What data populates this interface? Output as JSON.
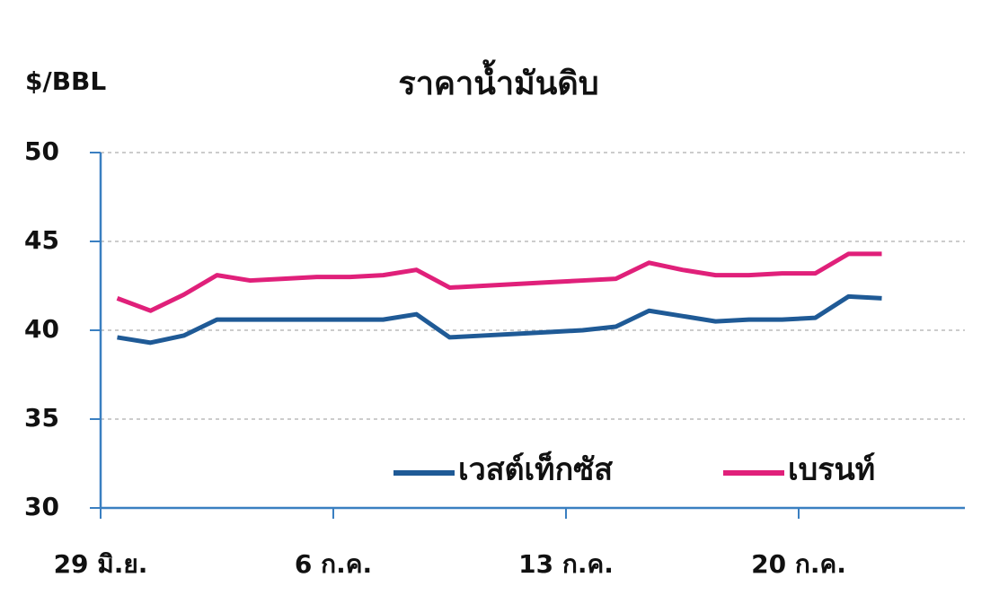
{
  "chart_data": {
    "type": "line",
    "title": "ราคาน้ำมันดิบ",
    "y_label": "$/BBL",
    "categories": [
      "29 มิ.ย.",
      null,
      null,
      null,
      null,
      null,
      null,
      "6 ก.ค.",
      null,
      null,
      null,
      null,
      null,
      null,
      "13 ก.ค.",
      null,
      null,
      null,
      null,
      null,
      null,
      "20 ก.ค.",
      null,
      null,
      null,
      null
    ],
    "series": [
      {
        "name": "เวสต์เท็กซัส",
        "color": "#1f5a96",
        "values": [
          39.6,
          39.3,
          39.7,
          40.6,
          40.6,
          40.6,
          40.6,
          40.6,
          40.6,
          40.9,
          39.6,
          39.7,
          39.8,
          39.9,
          40.0,
          40.2,
          41.1,
          40.8,
          40.5,
          40.6,
          40.6,
          40.7,
          41.9,
          41.8,
          null,
          null
        ]
      },
      {
        "name": "เบรนท์",
        "color": "#e0207a",
        "values": [
          41.8,
          41.1,
          42.0,
          43.1,
          42.8,
          42.9,
          43.0,
          43.0,
          43.1,
          43.4,
          42.4,
          42.5,
          42.6,
          42.7,
          42.8,
          42.9,
          43.8,
          43.4,
          43.1,
          43.1,
          43.2,
          43.2,
          44.3,
          44.3,
          null,
          null
        ]
      }
    ],
    "ylim": [
      30,
      50
    ],
    "yticks": [
      30,
      35,
      40,
      45,
      50
    ],
    "grid": true
  }
}
